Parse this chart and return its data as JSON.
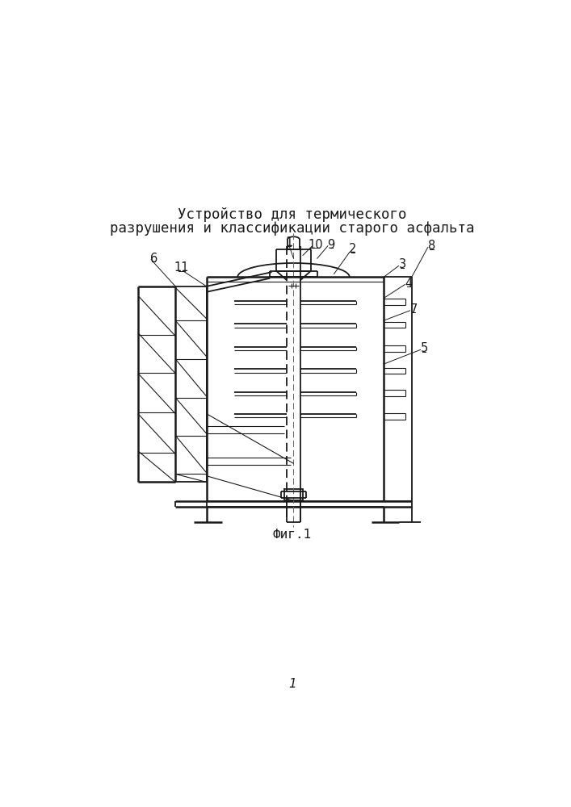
{
  "title_line1": "Устройство для термического",
  "title_line2": "разрушения и классификации старого асфальта",
  "fig_label": "Фиг.1",
  "page_number": "1",
  "bg_color": "#ffffff",
  "line_color": "#1a1a1a",
  "title_fontsize": 12.5,
  "label_fontsize": 10.5,
  "fig_label_fontsize": 11.5
}
